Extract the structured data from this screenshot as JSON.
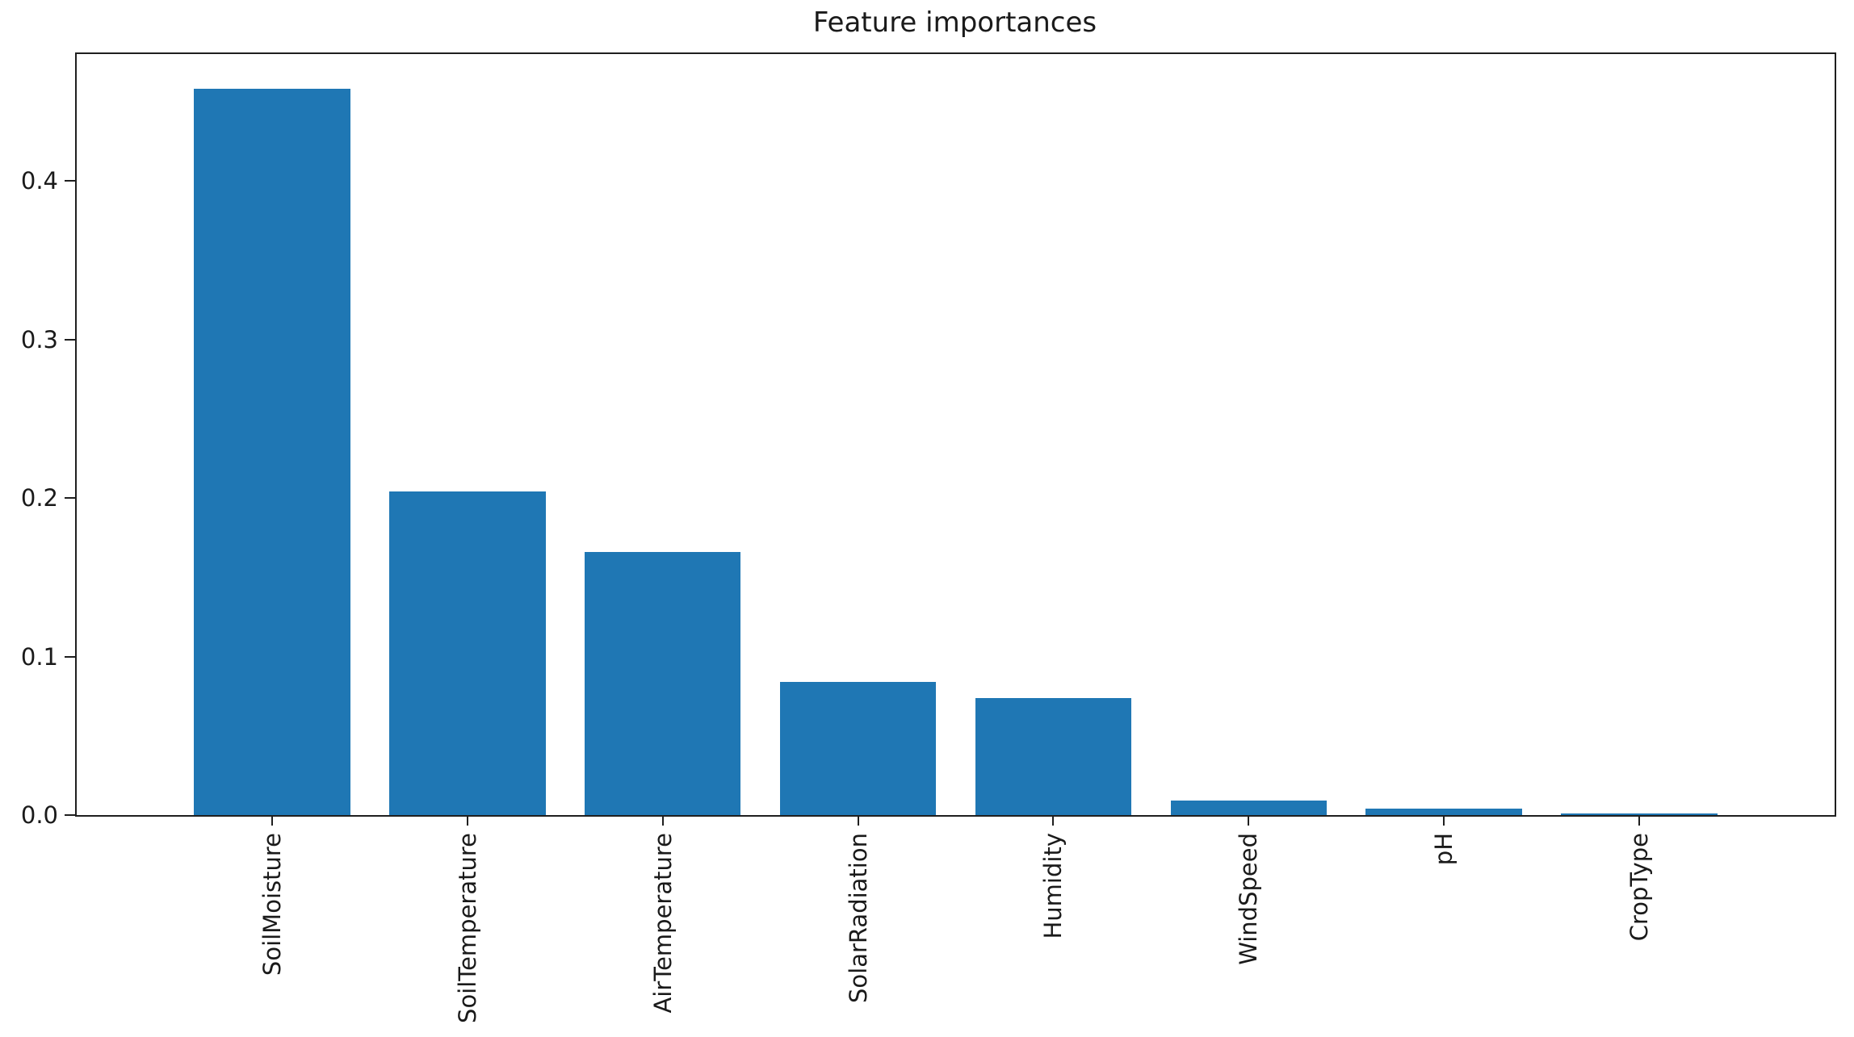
{
  "figure": {
    "background": "#ffffff",
    "text_color": "#1a1a1a",
    "spine_color": "#1f1f1f"
  },
  "chart_data": {
    "type": "bar",
    "title": "Feature importances",
    "categories": [
      "SoilMoisture",
      "SoilTemperature",
      "AirTemperature",
      "SolarRadiation",
      "Humidity",
      "WindSpeed",
      "pH",
      "CropType"
    ],
    "values": [
      0.458,
      0.204,
      0.166,
      0.084,
      0.074,
      0.009,
      0.004,
      0.001
    ],
    "bar_color": "#1f77b4",
    "bar_rel_width": 0.8,
    "xlabel": "",
    "ylabel": "",
    "xlim": [
      -1,
      8
    ],
    "ylim": [
      0,
      0.48
    ],
    "yticks": [
      0.0,
      0.1,
      0.2,
      0.3,
      0.4
    ],
    "ytick_labels": [
      "0.0",
      "0.1",
      "0.2",
      "0.3",
      "0.4"
    ],
    "xtick_rotation": 90,
    "grid": false,
    "legend": null
  }
}
